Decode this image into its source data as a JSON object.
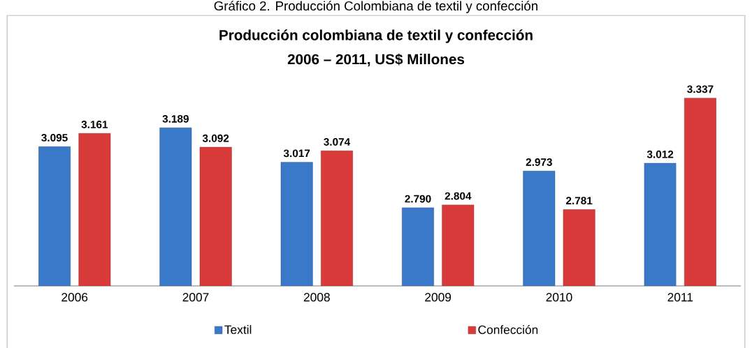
{
  "chart_data": {
    "type": "bar",
    "title": "Producción colombiana de textil y confección",
    "subtitle": "2006 – 2011, US$ Millones",
    "annotations": [
      "Gráfico 2. Producción Colombiana de textil y confección"
    ],
    "categories": [
      "2006",
      "2007",
      "2008",
      "2009",
      "2010",
      "2011"
    ],
    "series": [
      {
        "name": "Textil",
        "color": "#3a78c8",
        "values": [
          3095,
          3189,
          3017,
          2790,
          2973,
          3012
        ],
        "value_labels": [
          "3.095",
          "3.189",
          "3.017",
          "2.790",
          "2.973",
          "3.012"
        ]
      },
      {
        "name": "Confección",
        "color": "#d93a3a",
        "values": [
          3161,
          3092,
          3074,
          2804,
          2781,
          3337
        ],
        "value_labels": [
          "3.161",
          "3.092",
          "3.074",
          "2.804",
          "2.781",
          "3.337"
        ]
      }
    ],
    "ylim": [
      2400,
      3750
    ],
    "grid": false,
    "legend": "bottom"
  }
}
